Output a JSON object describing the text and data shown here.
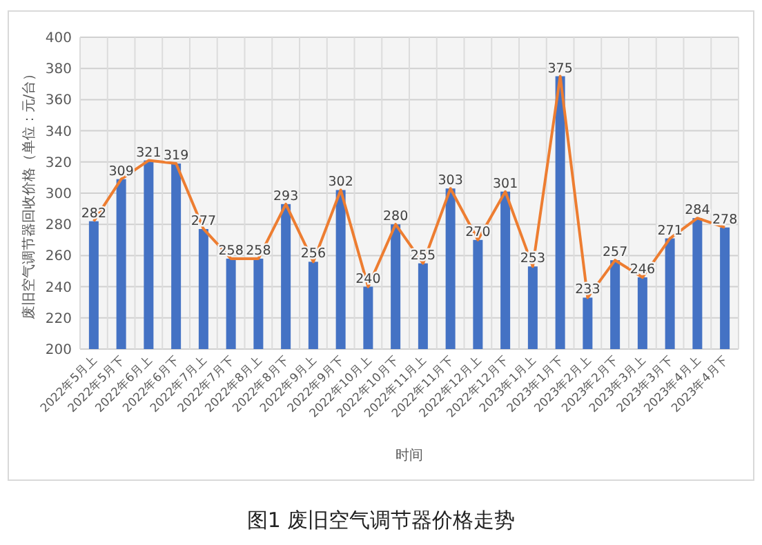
{
  "chart_data": {
    "type": "bar",
    "title": "图1  废旧空气调节器价格走势",
    "xlabel": "时间",
    "ylabel": "废旧空气调节器回收价格（单位：元/台）",
    "categories": [
      "2022年5月上",
      "2022年5月下",
      "2022年6月上",
      "2022年6月下",
      "2022年7月上",
      "2022年7月下",
      "2022年8月上",
      "2022年8月下",
      "2022年9月上",
      "2022年9月下",
      "2022年10月上",
      "2022年10月下",
      "2022年11月上",
      "2022年11月下",
      "2022年12月上",
      "2022年12月下",
      "2023年1月上",
      "2023年1月下",
      "2023年2月上",
      "2023年2月下",
      "2023年3月上",
      "2023年3月下",
      "2023年4月上",
      "2023年4月下"
    ],
    "series": [
      {
        "color": "#4472c4",
        "values": [
          282,
          309,
          321,
          319,
          277,
          258,
          258,
          293,
          256,
          302,
          240,
          280,
          255,
          303,
          270,
          301,
          253,
          375,
          233,
          257,
          246,
          271,
          284,
          278
        ],
        "value_labels": [
          "282",
          "309",
          "321",
          "319",
          "277",
          "258",
          "258",
          "293",
          "256",
          "302",
          "240",
          "280",
          "255",
          "303",
          "270",
          "301",
          "253",
          "375",
          "233",
          "257",
          "246",
          "271",
          "284",
          "278"
        ]
      },
      {
        "type": "line",
        "color": "#ed7d31",
        "values": [
          282,
          309,
          321,
          319,
          277,
          258,
          258,
          293,
          256,
          302,
          240,
          280,
          255,
          303,
          270,
          301,
          253,
          375,
          233,
          257,
          246,
          271,
          284,
          278
        ]
      }
    ],
    "ylim": [
      200,
      400
    ],
    "yticks": [
      200,
      220,
      240,
      260,
      280,
      300,
      320,
      340,
      360,
      380,
      400
    ],
    "grid": true
  }
}
